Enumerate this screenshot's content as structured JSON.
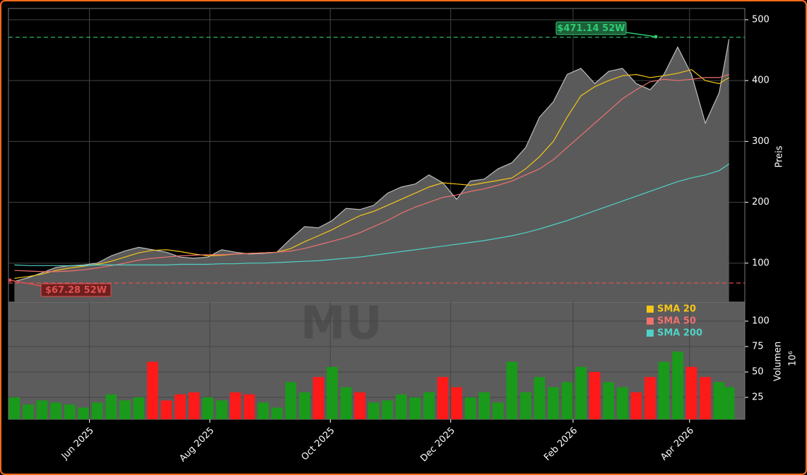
{
  "chart_data": {
    "type": "area",
    "watermark": "MU",
    "ylabel": "Preis",
    "x": [
      3,
      10,
      17,
      24,
      31,
      38,
      45,
      52,
      59,
      66,
      73,
      80,
      87,
      94,
      101,
      108,
      115,
      122,
      129,
      136,
      143,
      150,
      157,
      164,
      171,
      178,
      185,
      192,
      199,
      206,
      213,
      220,
      227,
      234,
      241,
      248,
      255,
      262,
      269,
      276,
      283,
      290,
      297,
      304,
      311,
      318,
      325,
      332,
      339,
      346,
      353,
      360,
      365
    ],
    "xlim": [
      0,
      373
    ],
    "xticks": [
      {
        "value": 41,
        "label": "Jun 2025"
      },
      {
        "value": 102,
        "label": "Aug 2025"
      },
      {
        "value": 163,
        "label": "Oct 2025"
      },
      {
        "value": 224,
        "label": "Dec 2025"
      },
      {
        "value": 286,
        "label": "Feb 2026"
      },
      {
        "value": 345,
        "label": "Apr 2026"
      }
    ],
    "ylim": [
      36,
      518.5
    ],
    "yticks": [
      100,
      200,
      300,
      400,
      500
    ],
    "grid": true,
    "price": {
      "color": "#5a5a5a",
      "line_color": "#bdbdbd",
      "values": [
        70,
        76,
        84,
        93,
        96,
        97,
        100,
        112,
        120,
        126,
        122,
        118,
        110,
        108,
        110,
        122,
        118,
        115,
        116,
        118,
        140,
        160,
        158,
        170,
        190,
        188,
        195,
        215,
        225,
        230,
        245,
        232,
        205,
        235,
        238,
        255,
        265,
        290,
        340,
        365,
        410,
        420,
        395,
        415,
        420,
        395,
        385,
        410,
        455,
        410,
        330,
        380,
        468
      ]
    },
    "series": [
      {
        "name": "SMA 20",
        "color": "#f5c518",
        "values": [
          75,
          78,
          82,
          88,
          92,
          95,
          98,
          103,
          110,
          117,
          121,
          122,
          119,
          115,
          112,
          113,
          115,
          116,
          117,
          118,
          124,
          135,
          145,
          155,
          167,
          178,
          185,
          195,
          205,
          215,
          225,
          232,
          230,
          228,
          232,
          236,
          240,
          255,
          275,
          300,
          340,
          375,
          390,
          400,
          408,
          410,
          405,
          408,
          412,
          418,
          400,
          395,
          405
        ]
      },
      {
        "name": "SMA 50",
        "color": "#f07070",
        "values": [
          88,
          87,
          86,
          86,
          87,
          89,
          92,
          96,
          100,
          105,
          108,
          110,
          112,
          113,
          114,
          114,
          115,
          116,
          117,
          118,
          120,
          124,
          130,
          136,
          142,
          150,
          160,
          170,
          182,
          192,
          200,
          208,
          212,
          218,
          222,
          228,
          235,
          245,
          255,
          270,
          290,
          310,
          330,
          350,
          370,
          385,
          398,
          402,
          400,
          402,
          405,
          405,
          410
        ]
      },
      {
        "name": "SMA 200",
        "color": "#4fd1c5",
        "values": [
          97,
          96,
          96,
          96,
          96,
          96,
          97,
          97,
          97,
          97,
          97,
          97,
          98,
          98,
          98,
          99,
          99,
          100,
          100,
          101,
          102,
          103,
          104,
          106,
          108,
          110,
          113,
          116,
          119,
          122,
          125,
          128,
          131,
          134,
          137,
          141,
          145,
          150,
          156,
          163,
          170,
          178,
          186,
          194,
          202,
          210,
          218,
          226,
          234,
          240,
          245,
          252,
          263
        ]
      }
    ],
    "hlines": [
      {
        "value": 471.14,
        "label": "$471.14 52W",
        "color": "#2ecc71",
        "box": "#1e5e3a"
      },
      {
        "value": 67.28,
        "label": "$67.28 52W",
        "color": "#e05050",
        "box": "#6e1f1f"
      }
    ],
    "volume": {
      "ylabel": "Volumen",
      "scale": "10⁶",
      "ylim": [
        3.5,
        118.75
      ],
      "yticks": [
        25,
        50,
        75,
        100
      ],
      "up_color": "#1a9a1a",
      "down_color": "#ff1a1a",
      "values": [
        25,
        18,
        22,
        20,
        18,
        15,
        20,
        28,
        22,
        25,
        60,
        22,
        28,
        30,
        25,
        22,
        30,
        28,
        20,
        15,
        40,
        30,
        45,
        55,
        35,
        30,
        20,
        22,
        28,
        25,
        30,
        45,
        35,
        25,
        30,
        20,
        60,
        30,
        45,
        35,
        40,
        55,
        50,
        40,
        35,
        30,
        45,
        60,
        70,
        55,
        45,
        40,
        35
      ]
    }
  }
}
